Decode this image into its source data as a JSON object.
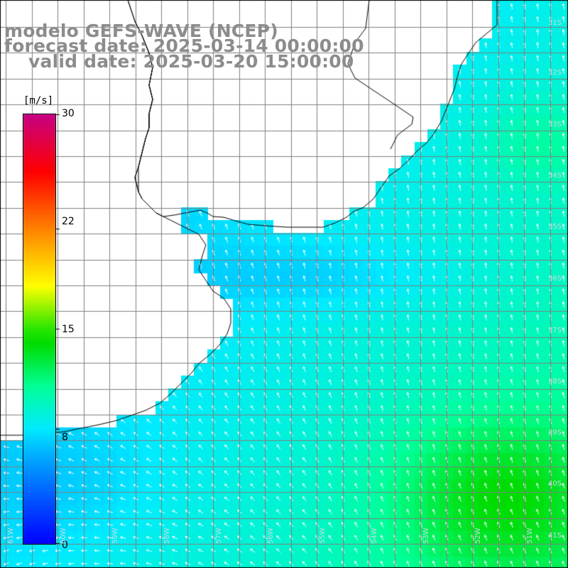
{
  "title": {
    "line1": "modelo GEFS-WAVE (NCEP)",
    "line2": "forecast date: 2025-03-14 00:00:00",
    "line3": "valid date: 2025-03-20 15:00:00"
  },
  "colorbar": {
    "unit": "[m/s]",
    "ticks": [
      "30",
      "22",
      "15",
      "8",
      "0"
    ],
    "tick_values": [
      30,
      22,
      15,
      8,
      0
    ],
    "range": [
      0,
      30
    ],
    "colors": [
      "#0000ff",
      "#0080ff",
      "#00e6ff",
      "#00ff80",
      "#00dd00",
      "#ffff00",
      "#ff8000",
      "#ff0000",
      "#c00080"
    ]
  },
  "map": {
    "lat_labels": [
      "31S",
      "32S",
      "33S",
      "34S",
      "35S",
      "36S",
      "37S",
      "38S",
      "39S",
      "40S",
      "41S"
    ],
    "lon_labels": [
      "61W",
      "60W",
      "59W",
      "58W",
      "57W",
      "56W",
      "55W",
      "54W",
      "53W",
      "52W",
      "51W"
    ],
    "lon_range": [
      -62,
      -51
    ],
    "lat_range": [
      -41.5,
      -30.5
    ],
    "grid_color": "#808080",
    "coast_color": "#000000",
    "arrow_color": "#ffffff"
  }
}
